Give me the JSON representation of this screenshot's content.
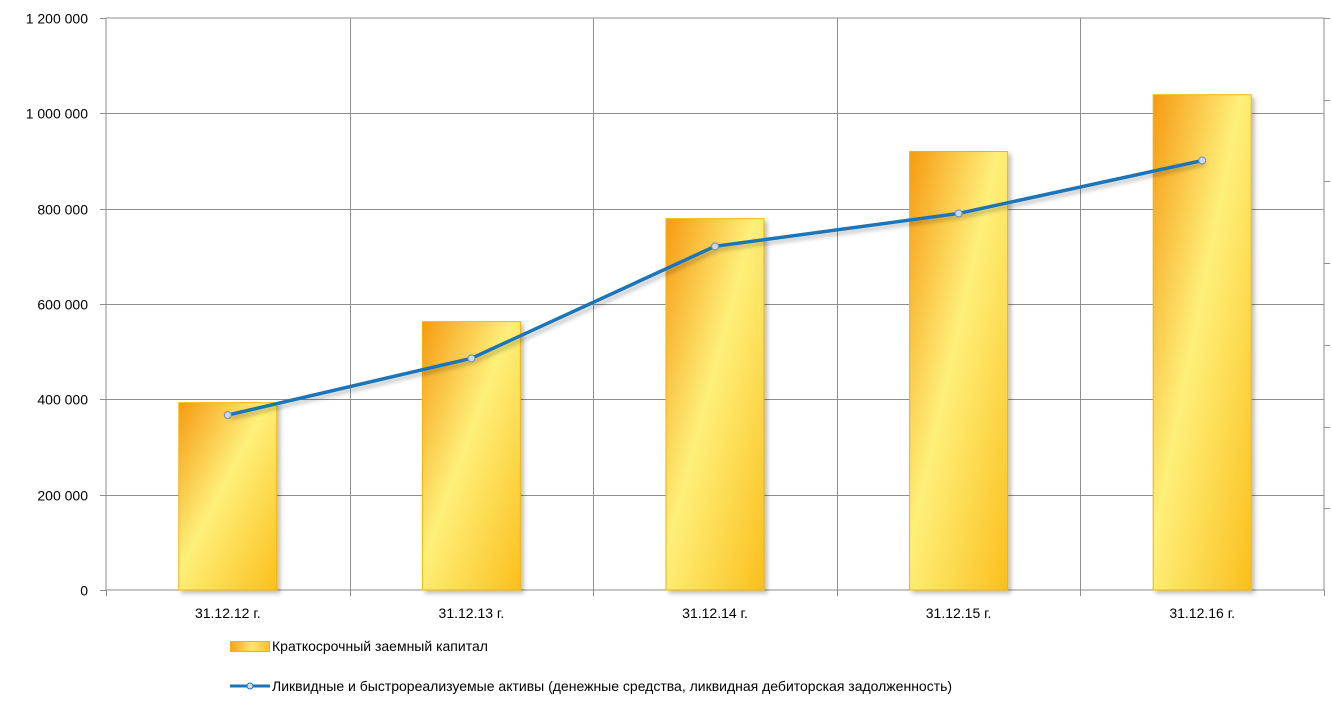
{
  "chart_data": {
    "type": "bar",
    "categories": [
      "31.12.12 г.",
      "31.12.13 г.",
      "31.12.14 г.",
      "31.12.15 г.",
      "31.12.16 г."
    ],
    "series": [
      {
        "name": "Краткосрочный заемный капитал",
        "kind": "bar",
        "values": [
          393000,
          563000,
          779000,
          920000,
          1039000
        ],
        "color": "#fbc02d"
      },
      {
        "name": "Ликвидные и быстрореализуемые активы (денежные средства, ликвидная дебиторская задолженность)",
        "kind": "line",
        "values": [
          367000,
          486000,
          721000,
          790000,
          901000
        ],
        "color": "#1a74b8"
      }
    ],
    "yticks": [
      "0",
      "200 000",
      "400 000",
      "600 000",
      "800 000",
      "1 000 000",
      "1 200 000"
    ],
    "ylim": [
      0,
      1200000
    ],
    "grid": true,
    "legend_position": "bottom"
  }
}
